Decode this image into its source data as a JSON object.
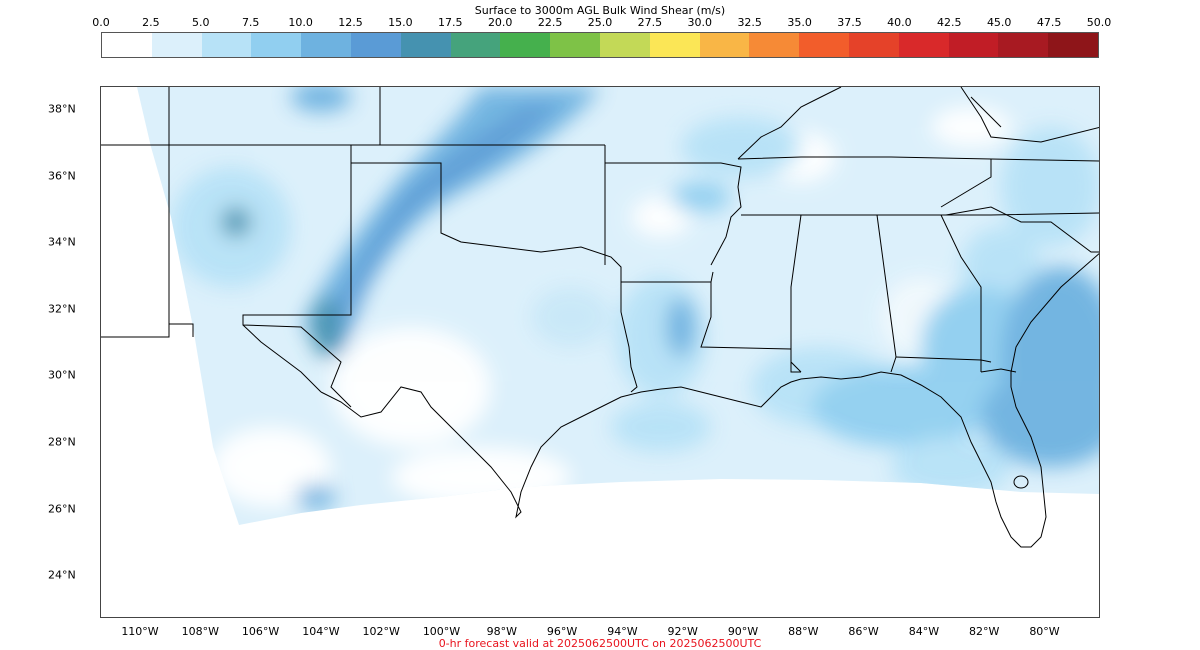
{
  "title": "Surface to 3000m AGL Bulk Wind Shear (m/s)",
  "footer": "0-hr forecast valid at 2025062500UTC on 2025062500UTC",
  "colorbar": {
    "ticks": [
      "0.0",
      "2.5",
      "5.0",
      "7.5",
      "10.0",
      "12.5",
      "15.0",
      "17.5",
      "20.0",
      "22.5",
      "25.0",
      "27.5",
      "30.0",
      "32.5",
      "35.0",
      "37.5",
      "40.0",
      "42.5",
      "45.0",
      "47.5",
      "50.0"
    ],
    "colors": [
      "#ffffff",
      "#dcf0fb",
      "#b7e2f7",
      "#91cff0",
      "#6eb2e0",
      "#5a9bd6",
      "#4592b0",
      "#45a37c",
      "#45b04d",
      "#7ec247",
      "#c3d957",
      "#fbe656",
      "#f9b646",
      "#f68a36",
      "#f25d2b",
      "#e54229",
      "#d9292a",
      "#c11d26",
      "#a81a22",
      "#8e1519"
    ]
  },
  "axes": {
    "lat_labels": [
      "38°N",
      "36°N",
      "34°N",
      "32°N",
      "30°N",
      "28°N",
      "26°N",
      "24°N"
    ],
    "lon_labels": [
      "110°W",
      "108°W",
      "106°W",
      "104°W",
      "102°W",
      "100°W",
      "98°W",
      "96°W",
      "94°W",
      "92°W",
      "90°W",
      "88°W",
      "86°W",
      "84°W",
      "82°W",
      "80°W"
    ]
  }
}
